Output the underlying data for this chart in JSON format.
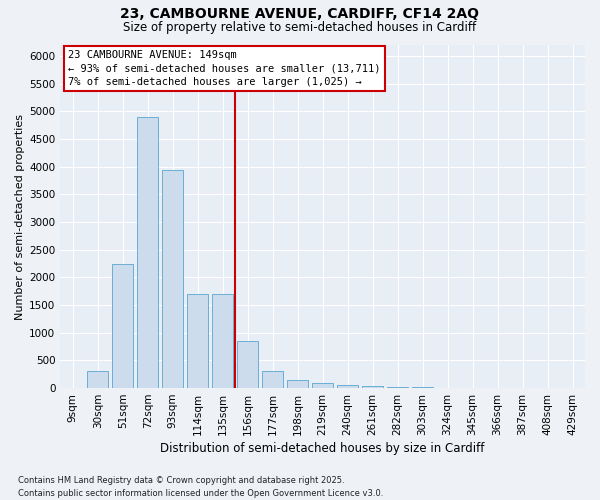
{
  "title1": "23, CAMBOURNE AVENUE, CARDIFF, CF14 2AQ",
  "title2": "Size of property relative to semi-detached houses in Cardiff",
  "xlabel": "Distribution of semi-detached houses by size in Cardiff",
  "ylabel": "Number of semi-detached properties",
  "categories": [
    "9sqm",
    "30sqm",
    "51sqm",
    "72sqm",
    "93sqm",
    "114sqm",
    "135sqm",
    "156sqm",
    "177sqm",
    "198sqm",
    "219sqm",
    "240sqm",
    "261sqm",
    "282sqm",
    "303sqm",
    "324sqm",
    "345sqm",
    "366sqm",
    "387sqm",
    "408sqm",
    "429sqm"
  ],
  "values": [
    5,
    300,
    2250,
    4900,
    3950,
    1700,
    1700,
    850,
    300,
    150,
    100,
    60,
    40,
    25,
    15,
    10,
    6,
    4,
    2,
    1,
    1
  ],
  "bar_color": "#cddcec",
  "bar_edge_color": "#6baed6",
  "vline_color": "#cc0000",
  "annotation_title": "23 CAMBOURNE AVENUE: 149sqm",
  "annotation_line1": "← 93% of semi-detached houses are smaller (13,711)",
  "annotation_line2": "7% of semi-detached houses are larger (1,025) →",
  "annotation_box_edgecolor": "#cc0000",
  "vline_index": 6.5,
  "ylim": [
    0,
    6200
  ],
  "yticks": [
    0,
    500,
    1000,
    1500,
    2000,
    2500,
    3000,
    3500,
    4000,
    4500,
    5000,
    5500,
    6000
  ],
  "footer1": "Contains HM Land Registry data © Crown copyright and database right 2025.",
  "footer2": "Contains public sector information licensed under the Open Government Licence v3.0.",
  "fig_bg_color": "#eef2f7",
  "plot_bg_color": "#e8eef6",
  "grid_color": "#ffffff",
  "title1_fontsize": 10,
  "title2_fontsize": 8.5,
  "ylabel_fontsize": 8,
  "xlabel_fontsize": 8.5,
  "tick_fontsize": 7.5,
  "annot_fontsize": 7.5,
  "footer_fontsize": 6
}
